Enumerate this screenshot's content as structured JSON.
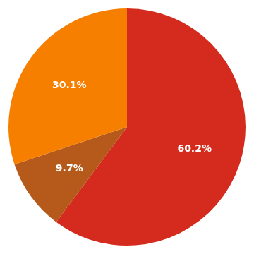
{
  "chart_data": {
    "type": "pie",
    "values": [
      60.2,
      9.7,
      30.1
    ],
    "value_labels": [
      "60.2%",
      "9.7%",
      "30.1%"
    ],
    "colors": [
      "#D42B1E",
      "#B55A1A",
      "#F77F00"
    ],
    "data_labels": true
  }
}
